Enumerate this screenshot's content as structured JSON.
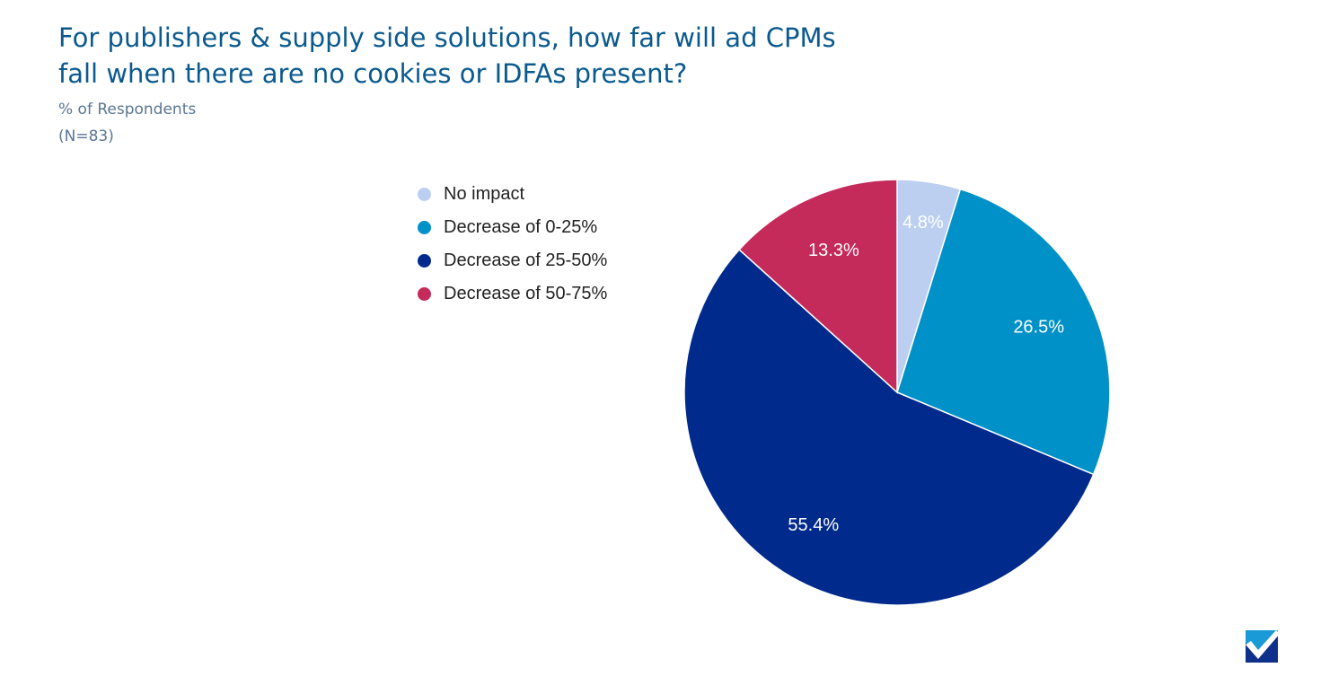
{
  "chart_data": {
    "type": "pie",
    "title": "For publishers & supply side solutions, how far will ad CPMs fall when there are no cookies or IDFAs present?",
    "subtitle": "% of Respondents",
    "note": "(N=83)",
    "legend_position": "left",
    "slices": [
      {
        "name": "No impact",
        "value": 4.8,
        "label": "4.8%",
        "color": "#bccff1"
      },
      {
        "name": "Decrease of 0-25%",
        "value": 26.5,
        "label": "26.5%",
        "color": "#0091c8"
      },
      {
        "name": "Decrease of 25-50%",
        "value": 55.4,
        "label": "55.4%",
        "color": "#002a8c"
      },
      {
        "name": "Decrease of 50-75%",
        "value": 13.3,
        "label": "13.3%",
        "color": "#c42a5a"
      }
    ]
  },
  "logo": {
    "name": "checkmark-logo"
  }
}
